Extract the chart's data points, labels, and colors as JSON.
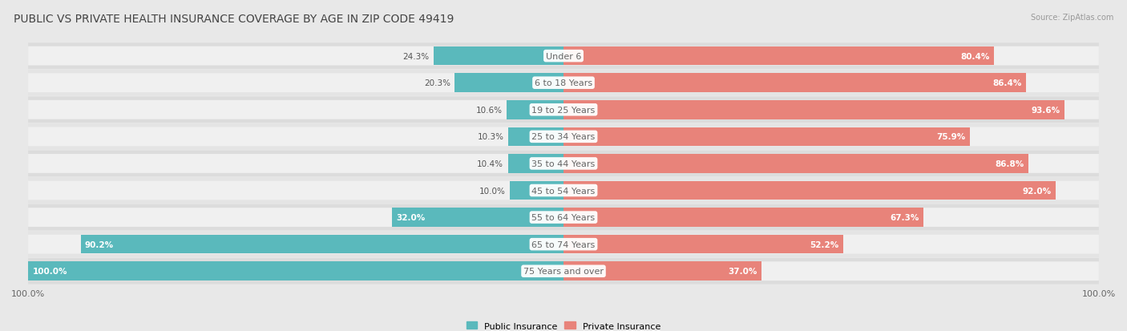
{
  "title": "PUBLIC VS PRIVATE HEALTH INSURANCE COVERAGE BY AGE IN ZIP CODE 49419",
  "source": "Source: ZipAtlas.com",
  "categories": [
    "Under 6",
    "6 to 18 Years",
    "19 to 25 Years",
    "25 to 34 Years",
    "35 to 44 Years",
    "45 to 54 Years",
    "55 to 64 Years",
    "65 to 74 Years",
    "75 Years and over"
  ],
  "public_values": [
    24.3,
    20.3,
    10.6,
    10.3,
    10.4,
    10.0,
    32.0,
    90.2,
    100.0
  ],
  "private_values": [
    80.4,
    86.4,
    93.6,
    75.9,
    86.8,
    92.0,
    67.3,
    52.2,
    37.0
  ],
  "public_color": "#5ab9bc",
  "private_color": "#e8837a",
  "bg_color": "#e8e8e8",
  "row_bg": "#dcdcdc",
  "bar_bg": "#f5f5f5",
  "title_fontsize": 10,
  "label_fontsize": 8,
  "value_fontsize": 7.5,
  "legend_fontsize": 8,
  "source_fontsize": 7
}
